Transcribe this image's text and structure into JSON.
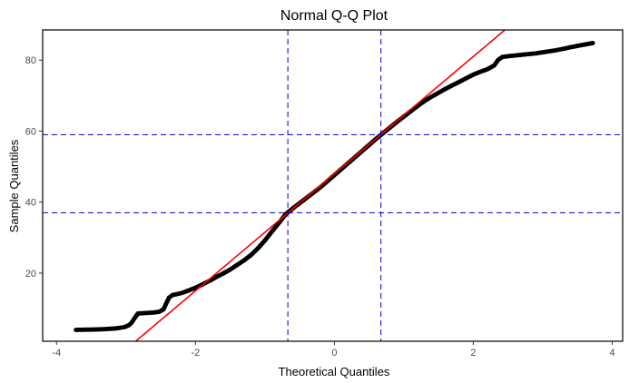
{
  "chart_data": {
    "type": "scatter",
    "title": "Normal Q-Q Plot",
    "xlabel": "Theoretical Quantiles",
    "ylabel": "Sample Quantiles",
    "xlim": [
      -4.2,
      4.15
    ],
    "ylim": [
      0.8,
      88.5
    ],
    "xticks": [
      -4,
      -2,
      0,
      2,
      4
    ],
    "yticks": [
      20,
      40,
      60,
      80
    ],
    "grid": false,
    "reference_line": {
      "intercept": 48.0,
      "slope": 16.5,
      "color": "#ff0000"
    },
    "quartile_lines": {
      "x": [
        -0.67,
        0.67
      ],
      "y": [
        37.0,
        59.0
      ],
      "color": "#0000cc",
      "style": "dashed"
    },
    "point_color": "#000000",
    "points": [
      [
        -3.72,
        4.0
      ],
      [
        -3.45,
        4.1
      ],
      [
        -3.32,
        4.2
      ],
      [
        -3.22,
        4.3
      ],
      [
        -3.15,
        4.4
      ],
      [
        -3.08,
        4.6
      ],
      [
        -3.02,
        4.8
      ],
      [
        -2.96,
        5.3
      ],
      [
        -2.92,
        6.0
      ],
      [
        -2.88,
        7.2
      ],
      [
        -2.83,
        8.6
      ],
      [
        -2.76,
        8.7
      ],
      [
        -2.68,
        8.8
      ],
      [
        -2.6,
        8.9
      ],
      [
        -2.52,
        9.1
      ],
      [
        -2.46,
        9.8
      ],
      [
        -2.42,
        11.5
      ],
      [
        -2.38,
        13.1
      ],
      [
        -2.33,
        13.8
      ],
      [
        -2.26,
        14.1
      ],
      [
        -2.18,
        14.5
      ],
      [
        -2.1,
        15.1
      ],
      [
        -2.02,
        15.7
      ],
      [
        -1.94,
        16.4
      ],
      [
        -1.86,
        17.2
      ],
      [
        -1.78,
        18.0
      ],
      [
        -1.7,
        18.9
      ],
      [
        -1.6,
        19.9
      ],
      [
        -1.5,
        21.0
      ],
      [
        -1.4,
        22.3
      ],
      [
        -1.3,
        23.6
      ],
      [
        -1.2,
        25.1
      ],
      [
        -1.1,
        27.0
      ],
      [
        -1.0,
        29.2
      ],
      [
        -0.9,
        31.7
      ],
      [
        -0.8,
        34.1
      ],
      [
        -0.7,
        36.6
      ],
      [
        -0.6,
        38.2
      ],
      [
        -0.5,
        39.7
      ],
      [
        -0.4,
        41.2
      ],
      [
        -0.3,
        42.7
      ],
      [
        -0.2,
        44.2
      ],
      [
        -0.1,
        45.9
      ],
      [
        0.0,
        47.6
      ],
      [
        0.1,
        49.3
      ],
      [
        0.2,
        51.0
      ],
      [
        0.3,
        52.7
      ],
      [
        0.4,
        54.4
      ],
      [
        0.5,
        56.1
      ],
      [
        0.6,
        57.8
      ],
      [
        0.7,
        59.4
      ],
      [
        0.8,
        61.0
      ],
      [
        0.9,
        62.6
      ],
      [
        1.0,
        64.1
      ],
      [
        1.1,
        65.6
      ],
      [
        1.2,
        67.1
      ],
      [
        1.3,
        68.5
      ],
      [
        1.4,
        69.7
      ],
      [
        1.5,
        70.8
      ],
      [
        1.6,
        71.9
      ],
      [
        1.7,
        72.9
      ],
      [
        1.8,
        73.9
      ],
      [
        1.9,
        74.9
      ],
      [
        2.0,
        75.9
      ],
      [
        2.1,
        76.7
      ],
      [
        2.2,
        77.4
      ],
      [
        2.3,
        78.5
      ],
      [
        2.36,
        80.1
      ],
      [
        2.42,
        80.9
      ],
      [
        2.5,
        81.1
      ],
      [
        2.6,
        81.3
      ],
      [
        2.7,
        81.5
      ],
      [
        2.8,
        81.7
      ],
      [
        2.9,
        81.9
      ],
      [
        3.0,
        82.2
      ],
      [
        3.1,
        82.5
      ],
      [
        3.2,
        82.8
      ],
      [
        3.3,
        83.2
      ],
      [
        3.42,
        83.7
      ],
      [
        3.55,
        84.2
      ],
      [
        3.72,
        84.8
      ]
    ]
  }
}
